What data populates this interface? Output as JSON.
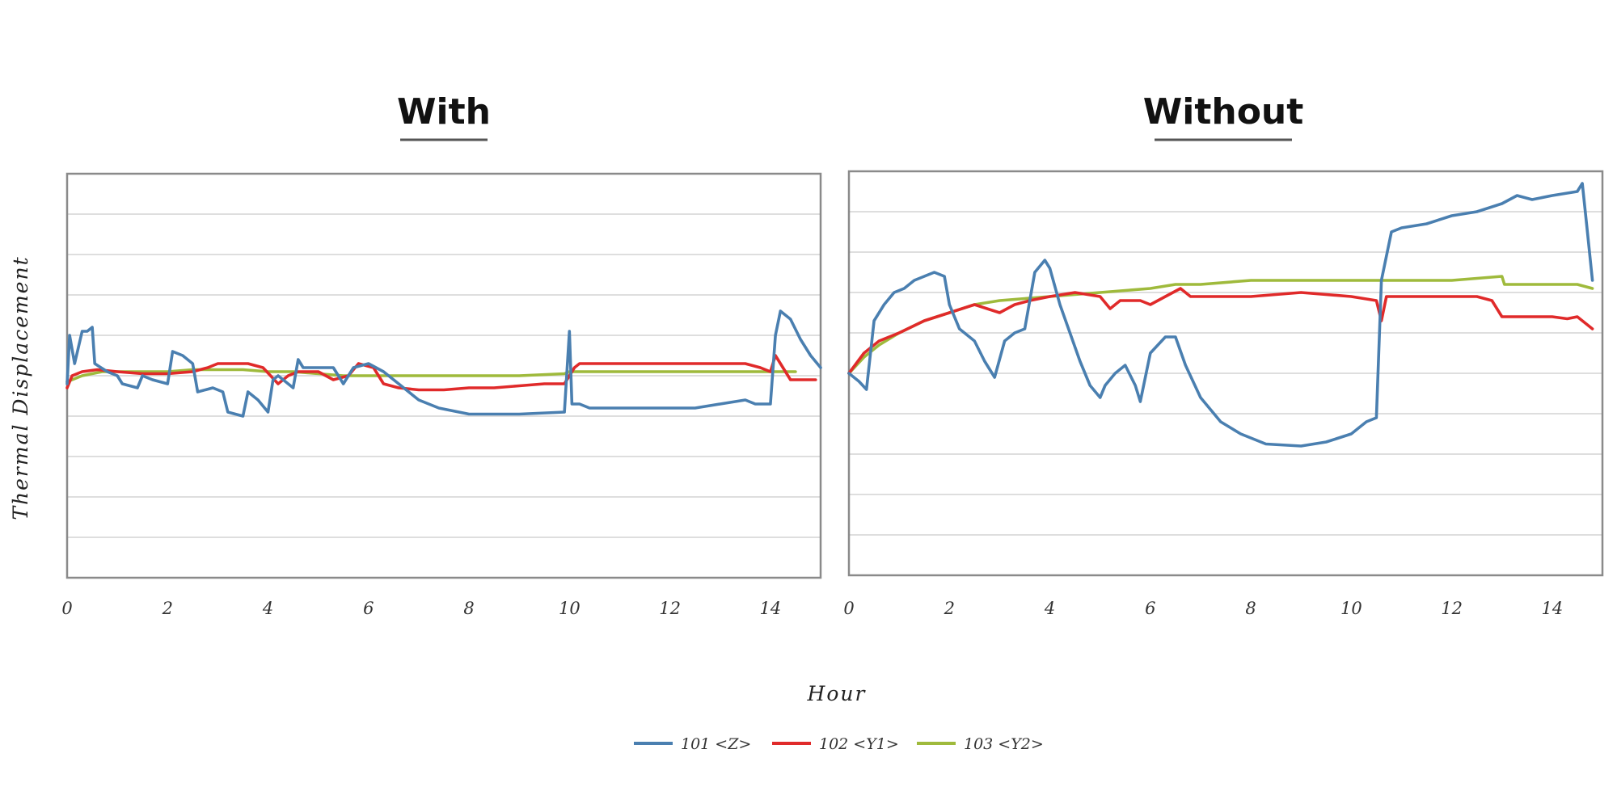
{
  "figure": {
    "ylabel": "Thermal Displacement",
    "xlabel": "Hour"
  },
  "legend": [
    {
      "name": "101 <Z>",
      "color": "#4a7fb0"
    },
    {
      "name": "102 <Y1>",
      "color": "#e02a2a"
    },
    {
      "name": "103 <Y2>",
      "color": "#9fba3c"
    }
  ],
  "chart_data": [
    {
      "type": "line",
      "title": "With",
      "xlim": [
        0,
        15
      ],
      "ylim": [
        -5,
        5
      ],
      "xticks": [
        0,
        2,
        4,
        6,
        8,
        10,
        12,
        14
      ],
      "grid": "horizontal",
      "series": [
        {
          "name": "101 <Z>",
          "color": "#4a7fb0",
          "points": [
            [
              0,
              -0.2
            ],
            [
              0.05,
              1.0
            ],
            [
              0.15,
              0.3
            ],
            [
              0.3,
              1.1
            ],
            [
              0.4,
              1.1
            ],
            [
              0.5,
              1.2
            ],
            [
              0.55,
              0.3
            ],
            [
              0.8,
              0.1
            ],
            [
              1.0,
              0.0
            ],
            [
              1.1,
              -0.2
            ],
            [
              1.4,
              -0.3
            ],
            [
              1.5,
              0.0
            ],
            [
              1.7,
              -0.1
            ],
            [
              2.0,
              -0.2
            ],
            [
              2.1,
              0.6
            ],
            [
              2.3,
              0.5
            ],
            [
              2.5,
              0.3
            ],
            [
              2.6,
              -0.4
            ],
            [
              2.9,
              -0.3
            ],
            [
              3.1,
              -0.4
            ],
            [
              3.2,
              -0.9
            ],
            [
              3.5,
              -1.0
            ],
            [
              3.6,
              -0.4
            ],
            [
              3.8,
              -0.6
            ],
            [
              4.0,
              -0.9
            ],
            [
              4.1,
              -0.1
            ],
            [
              4.2,
              0.0
            ],
            [
              4.5,
              -0.3
            ],
            [
              4.6,
              0.4
            ],
            [
              4.7,
              0.2
            ],
            [
              5.0,
              0.2
            ],
            [
              5.3,
              0.2
            ],
            [
              5.5,
              -0.2
            ],
            [
              5.6,
              0.0
            ],
            [
              5.7,
              0.2
            ],
            [
              6.0,
              0.3
            ],
            [
              6.3,
              0.1
            ],
            [
              6.6,
              -0.2
            ],
            [
              7.0,
              -0.6
            ],
            [
              7.4,
              -0.8
            ],
            [
              8.0,
              -0.95
            ],
            [
              9.0,
              -0.95
            ],
            [
              9.9,
              -0.9
            ],
            [
              10.0,
              1.1
            ],
            [
              10.05,
              -0.7
            ],
            [
              10.2,
              -0.7
            ],
            [
              10.4,
              -0.8
            ],
            [
              11.0,
              -0.8
            ],
            [
              12.0,
              -0.8
            ],
            [
              12.5,
              -0.8
            ],
            [
              13.0,
              -0.7
            ],
            [
              13.5,
              -0.6
            ],
            [
              13.7,
              -0.7
            ],
            [
              14.0,
              -0.7
            ],
            [
              14.1,
              1.0
            ],
            [
              14.2,
              1.6
            ],
            [
              14.4,
              1.4
            ],
            [
              14.6,
              0.9
            ],
            [
              14.8,
              0.5
            ],
            [
              15.0,
              0.2
            ]
          ]
        },
        {
          "name": "102 <Y1>",
          "color": "#e02a2a",
          "points": [
            [
              0,
              -0.3
            ],
            [
              0.1,
              0.0
            ],
            [
              0.3,
              0.1
            ],
            [
              0.6,
              0.15
            ],
            [
              1.0,
              0.1
            ],
            [
              1.5,
              0.05
            ],
            [
              2.0,
              0.05
            ],
            [
              2.5,
              0.1
            ],
            [
              2.8,
              0.2
            ],
            [
              3.0,
              0.3
            ],
            [
              3.3,
              0.3
            ],
            [
              3.6,
              0.3
            ],
            [
              3.9,
              0.2
            ],
            [
              4.2,
              -0.2
            ],
            [
              4.4,
              0.0
            ],
            [
              4.6,
              0.1
            ],
            [
              5.0,
              0.1
            ],
            [
              5.3,
              -0.1
            ],
            [
              5.6,
              0.0
            ],
            [
              5.8,
              0.3
            ],
            [
              6.1,
              0.2
            ],
            [
              6.3,
              -0.2
            ],
            [
              6.6,
              -0.3
            ],
            [
              7.0,
              -0.35
            ],
            [
              7.5,
              -0.35
            ],
            [
              8.0,
              -0.3
            ],
            [
              8.5,
              -0.3
            ],
            [
              9.0,
              -0.25
            ],
            [
              9.5,
              -0.2
            ],
            [
              9.9,
              -0.2
            ],
            [
              10.1,
              0.2
            ],
            [
              10.2,
              0.3
            ],
            [
              10.5,
              0.3
            ],
            [
              11.0,
              0.3
            ],
            [
              12.0,
              0.3
            ],
            [
              13.0,
              0.3
            ],
            [
              13.5,
              0.3
            ],
            [
              13.8,
              0.2
            ],
            [
              14.0,
              0.1
            ],
            [
              14.1,
              0.5
            ],
            [
              14.2,
              0.3
            ],
            [
              14.4,
              -0.1
            ],
            [
              14.6,
              -0.1
            ],
            [
              14.9,
              -0.1
            ]
          ]
        },
        {
          "name": "103 <Y2>",
          "color": "#9fba3c",
          "points": [
            [
              0,
              -0.15
            ],
            [
              0.3,
              0.0
            ],
            [
              0.7,
              0.1
            ],
            [
              1.0,
              0.1
            ],
            [
              2.0,
              0.1
            ],
            [
              2.5,
              0.15
            ],
            [
              3.0,
              0.15
            ],
            [
              3.5,
              0.15
            ],
            [
              4.0,
              0.1
            ],
            [
              4.5,
              0.1
            ],
            [
              5.0,
              0.05
            ],
            [
              5.5,
              0.0
            ],
            [
              6.0,
              0.0
            ],
            [
              6.5,
              0.0
            ],
            [
              7.0,
              0.0
            ],
            [
              8.0,
              0.0
            ],
            [
              9.0,
              0.0
            ],
            [
              9.9,
              0.05
            ],
            [
              10.0,
              0.1
            ],
            [
              10.5,
              0.1
            ],
            [
              11.0,
              0.1
            ],
            [
              12.0,
              0.1
            ],
            [
              13.0,
              0.1
            ],
            [
              14.0,
              0.1
            ],
            [
              14.1,
              0.1
            ],
            [
              14.5,
              0.1
            ]
          ]
        }
      ]
    },
    {
      "type": "line",
      "title": "Without",
      "xlim": [
        0,
        15
      ],
      "ylim": [
        -5,
        5
      ],
      "xticks": [
        0,
        2,
        4,
        6,
        8,
        10,
        12,
        14
      ],
      "grid": "horizontal",
      "series": [
        {
          "name": "101 <Z>",
          "color": "#4a7fb0",
          "points": [
            [
              0,
              0.0
            ],
            [
              0.2,
              -0.2
            ],
            [
              0.35,
              -0.4
            ],
            [
              0.5,
              1.3
            ],
            [
              0.7,
              1.7
            ],
            [
              0.9,
              2.0
            ],
            [
              1.1,
              2.1
            ],
            [
              1.3,
              2.3
            ],
            [
              1.5,
              2.4
            ],
            [
              1.7,
              2.5
            ],
            [
              1.9,
              2.4
            ],
            [
              2.0,
              1.7
            ],
            [
              2.2,
              1.1
            ],
            [
              2.5,
              0.8
            ],
            [
              2.7,
              0.3
            ],
            [
              2.9,
              -0.1
            ],
            [
              3.1,
              0.8
            ],
            [
              3.3,
              1.0
            ],
            [
              3.5,
              1.1
            ],
            [
              3.6,
              1.8
            ],
            [
              3.7,
              2.5
            ],
            [
              3.9,
              2.8
            ],
            [
              4.0,
              2.6
            ],
            [
              4.2,
              1.7
            ],
            [
              4.4,
              1.0
            ],
            [
              4.6,
              0.3
            ],
            [
              4.8,
              -0.3
            ],
            [
              5.0,
              -0.6
            ],
            [
              5.1,
              -0.3
            ],
            [
              5.3,
              0.0
            ],
            [
              5.5,
              0.2
            ],
            [
              5.7,
              -0.3
            ],
            [
              5.8,
              -0.7
            ],
            [
              6.0,
              0.5
            ],
            [
              6.3,
              0.9
            ],
            [
              6.5,
              0.9
            ],
            [
              6.7,
              0.2
            ],
            [
              7.0,
              -0.6
            ],
            [
              7.4,
              -1.2
            ],
            [
              7.8,
              -1.5
            ],
            [
              8.3,
              -1.75
            ],
            [
              9.0,
              -1.8
            ],
            [
              9.5,
              -1.7
            ],
            [
              10.0,
              -1.5
            ],
            [
              10.3,
              -1.2
            ],
            [
              10.5,
              -1.1
            ],
            [
              10.6,
              2.3
            ],
            [
              10.8,
              3.5
            ],
            [
              11.0,
              3.6
            ],
            [
              11.5,
              3.7
            ],
            [
              12.0,
              3.9
            ],
            [
              12.5,
              4.0
            ],
            [
              13.0,
              4.2
            ],
            [
              13.3,
              4.4
            ],
            [
              13.6,
              4.3
            ],
            [
              14.0,
              4.4
            ],
            [
              14.5,
              4.5
            ],
            [
              14.6,
              4.7
            ],
            [
              14.7,
              3.5
            ],
            [
              14.8,
              2.3
            ]
          ]
        },
        {
          "name": "102 <Y1>",
          "color": "#e02a2a",
          "points": [
            [
              0,
              0.0
            ],
            [
              0.3,
              0.5
            ],
            [
              0.6,
              0.8
            ],
            [
              1.0,
              1.0
            ],
            [
              1.5,
              1.3
            ],
            [
              2.0,
              1.5
            ],
            [
              2.5,
              1.7
            ],
            [
              3.0,
              1.5
            ],
            [
              3.3,
              1.7
            ],
            [
              3.6,
              1.8
            ],
            [
              4.0,
              1.9
            ],
            [
              4.5,
              2.0
            ],
            [
              5.0,
              1.9
            ],
            [
              5.2,
              1.6
            ],
            [
              5.4,
              1.8
            ],
            [
              5.8,
              1.8
            ],
            [
              6.0,
              1.7
            ],
            [
              6.3,
              1.9
            ],
            [
              6.6,
              2.1
            ],
            [
              6.8,
              1.9
            ],
            [
              7.0,
              1.9
            ],
            [
              8.0,
              1.9
            ],
            [
              9.0,
              2.0
            ],
            [
              10.0,
              1.9
            ],
            [
              10.5,
              1.8
            ],
            [
              10.6,
              1.3
            ],
            [
              10.7,
              1.9
            ],
            [
              11.0,
              1.9
            ],
            [
              12.0,
              1.9
            ],
            [
              12.5,
              1.9
            ],
            [
              12.8,
              1.8
            ],
            [
              13.0,
              1.4
            ],
            [
              13.2,
              1.4
            ],
            [
              13.5,
              1.4
            ],
            [
              14.0,
              1.4
            ],
            [
              14.3,
              1.35
            ],
            [
              14.5,
              1.4
            ],
            [
              14.7,
              1.2
            ],
            [
              14.8,
              1.1
            ]
          ]
        },
        {
          "name": "103 <Y2>",
          "color": "#9fba3c",
          "points": [
            [
              0,
              0.0
            ],
            [
              0.3,
              0.4
            ],
            [
              0.6,
              0.7
            ],
            [
              1.0,
              1.0
            ],
            [
              1.5,
              1.3
            ],
            [
              2.0,
              1.5
            ],
            [
              2.5,
              1.7
            ],
            [
              3.0,
              1.8
            ],
            [
              3.5,
              1.85
            ],
            [
              4.0,
              1.9
            ],
            [
              4.5,
              1.95
            ],
            [
              5.0,
              2.0
            ],
            [
              5.5,
              2.05
            ],
            [
              6.0,
              2.1
            ],
            [
              6.5,
              2.2
            ],
            [
              7.0,
              2.2
            ],
            [
              8.0,
              2.3
            ],
            [
              9.0,
              2.3
            ],
            [
              10.0,
              2.3
            ],
            [
              10.5,
              2.3
            ],
            [
              11.0,
              2.3
            ],
            [
              12.0,
              2.3
            ],
            [
              12.5,
              2.35
            ],
            [
              13.0,
              2.4
            ],
            [
              13.05,
              2.2
            ],
            [
              13.5,
              2.2
            ],
            [
              14.0,
              2.2
            ],
            [
              14.5,
              2.2
            ],
            [
              14.8,
              2.1
            ]
          ]
        }
      ]
    }
  ]
}
